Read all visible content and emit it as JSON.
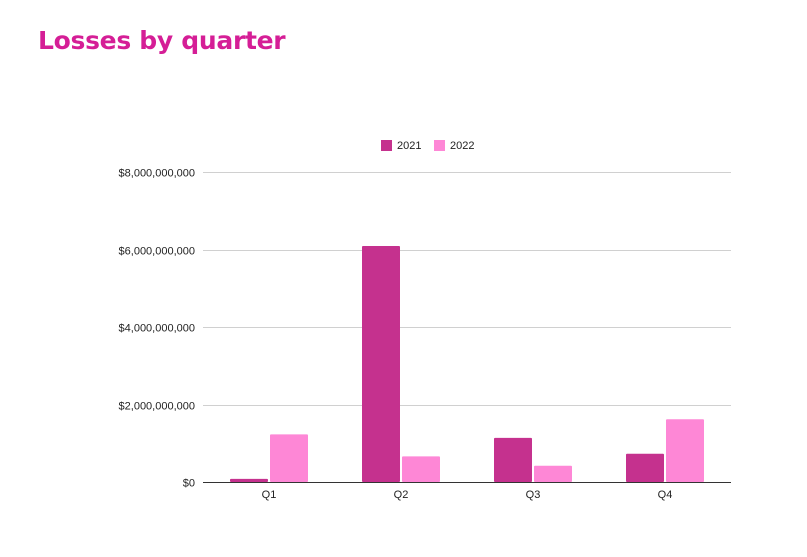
{
  "chart_data": {
    "type": "bar",
    "title": "Losses by quarter",
    "title_color": "#d51e96",
    "categories": [
      "Q1",
      "Q2",
      "Q3",
      "Q4"
    ],
    "series": [
      {
        "name": "2021",
        "color": "#c5318e",
        "values": [
          80000000,
          6090000000,
          1140000000,
          730000000
        ]
      },
      {
        "name": "2022",
        "color": "#fe87d6",
        "values": [
          1230000000,
          660000000,
          420000000,
          1620000000
        ]
      }
    ],
    "ylim": [
      0,
      8000000000
    ],
    "y_ticks": [
      {
        "value": 0,
        "label": "$0"
      },
      {
        "value": 2000000000,
        "label": "$2,000,000,000"
      },
      {
        "value": 4000000000,
        "label": "$4,000,000,000"
      },
      {
        "value": 6000000000,
        "label": "$6,000,000,000"
      },
      {
        "value": 8000000000,
        "label": "$8,000,000,000"
      }
    ],
    "xlabel": "",
    "ylabel": "",
    "grid": true,
    "legend_position": "top-center"
  }
}
